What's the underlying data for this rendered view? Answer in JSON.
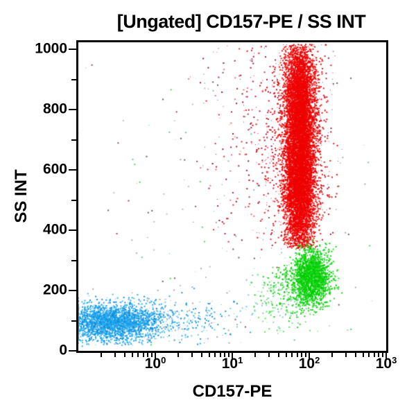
{
  "chart_data": {
    "type": "scatter",
    "title": "[Ungated] CD157-PE / SS INT",
    "xlabel": "CD157-PE",
    "ylabel": "SS INT",
    "x_scale": "log",
    "x_range": [
      0.1,
      1000
    ],
    "y_scale": "linear",
    "y_range": [
      0,
      1023
    ],
    "grid": false,
    "legend": "none",
    "colors": {
      "frame": "#000000",
      "background": "#ffffff",
      "blue_population": "#18A4EE",
      "green_population": "#00CC00",
      "red_population": "#EE0000"
    },
    "x_axis": {
      "major_ticks": [
        {
          "log": 0,
          "base": "10",
          "exp": "0"
        },
        {
          "log": 1,
          "base": "10",
          "exp": "1"
        },
        {
          "log": 2,
          "base": "10",
          "exp": "2"
        },
        {
          "log": 3,
          "base": "10",
          "exp": "3"
        }
      ],
      "minor_decades": [
        -1,
        0,
        1,
        2
      ],
      "minor_mults": [
        2,
        3,
        4,
        5,
        6,
        7,
        8,
        9
      ]
    },
    "y_axis": {
      "max": 1023,
      "major_ticks": [
        {
          "value": 0,
          "label": "0"
        },
        {
          "value": 200,
          "label": "200"
        },
        {
          "value": 400,
          "label": "400"
        },
        {
          "value": 600,
          "label": "600"
        },
        {
          "value": 800,
          "label": "800"
        },
        {
          "value": 1000,
          "label": "1000"
        }
      ],
      "minor_ticks": [
        100,
        300,
        500,
        700,
        900
      ]
    },
    "populations": [
      {
        "name": "noise-scatter",
        "n": 150,
        "x_log_mean": 1.0,
        "x_log_sd": 1.2,
        "x_clip": [
          -1.0,
          2.9
        ],
        "x_pile": false,
        "y_mean": 450,
        "y_sd": 350,
        "y_clip": [
          15,
          1010
        ],
        "colors": [
          "#BBBBBB",
          "#99AABB",
          "#555566",
          "#884444",
          "#44CC66",
          "#66BBAA"
        ]
      },
      {
        "name": "red-left-sparse",
        "n": 200,
        "x_log_mean": 1.25,
        "x_log_sd": 0.38,
        "x_clip": [
          0.35,
          1.75
        ],
        "x_pile": false,
        "y_mean": 700,
        "y_sd": 260,
        "y_clip": [
          340,
          1012
        ],
        "colors": [
          "#DD2233",
          "#AA1133",
          "#EE6677",
          "#880822"
        ]
      },
      {
        "name": "red-spray",
        "n": 900,
        "x_log_mean": 1.85,
        "x_log_sd": 0.24,
        "x_clip": [
          0.9,
          2.45
        ],
        "x_pile": false,
        "y_mean": 680,
        "y_sd": 230,
        "y_clip": [
          335,
          1015
        ],
        "colors": [
          "#EE0000",
          "#EE0000",
          "#CC1122",
          "#991133"
        ]
      },
      {
        "name": "granulocytes-red-upper",
        "n": 4200,
        "x_log_mean": 1.88,
        "x_log_sd": 0.1,
        "x_clip": [
          1.5,
          2.3
        ],
        "x_pile": false,
        "y_mean": 830,
        "y_sd": 110,
        "y_clip": [
          400,
          1016
        ],
        "colors": [
          "#EE0000"
        ]
      },
      {
        "name": "granulocytes-red-lower",
        "n": 5600,
        "x_log_mean": 1.88,
        "x_log_sd": 0.1,
        "x_clip": [
          1.5,
          2.3
        ],
        "x_pile": false,
        "y_mean": 560,
        "y_sd": 120,
        "y_clip": [
          340,
          1010
        ],
        "colors": [
          "#EE0000"
        ]
      },
      {
        "name": "green-trail",
        "n": 380,
        "x_log_mean": 1.75,
        "x_log_sd": 0.22,
        "x_clip": [
          1.0,
          2.3
        ],
        "x_pile": false,
        "y_mean": 190,
        "y_sd": 55,
        "y_clip": [
          60,
          330
        ],
        "colors": [
          "#00CC00",
          "#55DD55",
          "#88CCAA"
        ]
      },
      {
        "name": "monocytes-green-core",
        "n": 2000,
        "x_log_mean": 2.03,
        "x_log_sd": 0.12,
        "x_clip": [
          1.5,
          2.45
        ],
        "x_pile": false,
        "y_mean": 245,
        "y_sd": 46,
        "y_clip": [
          120,
          370
        ],
        "colors": [
          "#00CC00",
          "#00CC00",
          "#22D822"
        ]
      },
      {
        "name": "blue-tail",
        "n": 320,
        "x_log_mean": 0.3,
        "x_log_sd": 0.45,
        "x_clip": [
          -0.6,
          1.35
        ],
        "x_pile": false,
        "y_mean": 100,
        "y_sd": 38,
        "y_clip": [
          20,
          220
        ],
        "colors": [
          "#18A4EE",
          "#6CC4F2",
          "#9AA6B2",
          "#0E86D6"
        ]
      },
      {
        "name": "lymphocytes-blue-core",
        "n": 2600,
        "x_log_mean": -0.55,
        "x_log_sd": 0.3,
        "x_clip": [
          -1.0,
          0.9
        ],
        "x_pile": true,
        "y_mean": 95,
        "y_sd": 30,
        "y_clip": [
          15,
          230
        ],
        "colors": [
          "#18A4EE",
          "#18A4EE",
          "#3FB5F0",
          "#0E86D6"
        ]
      }
    ]
  }
}
